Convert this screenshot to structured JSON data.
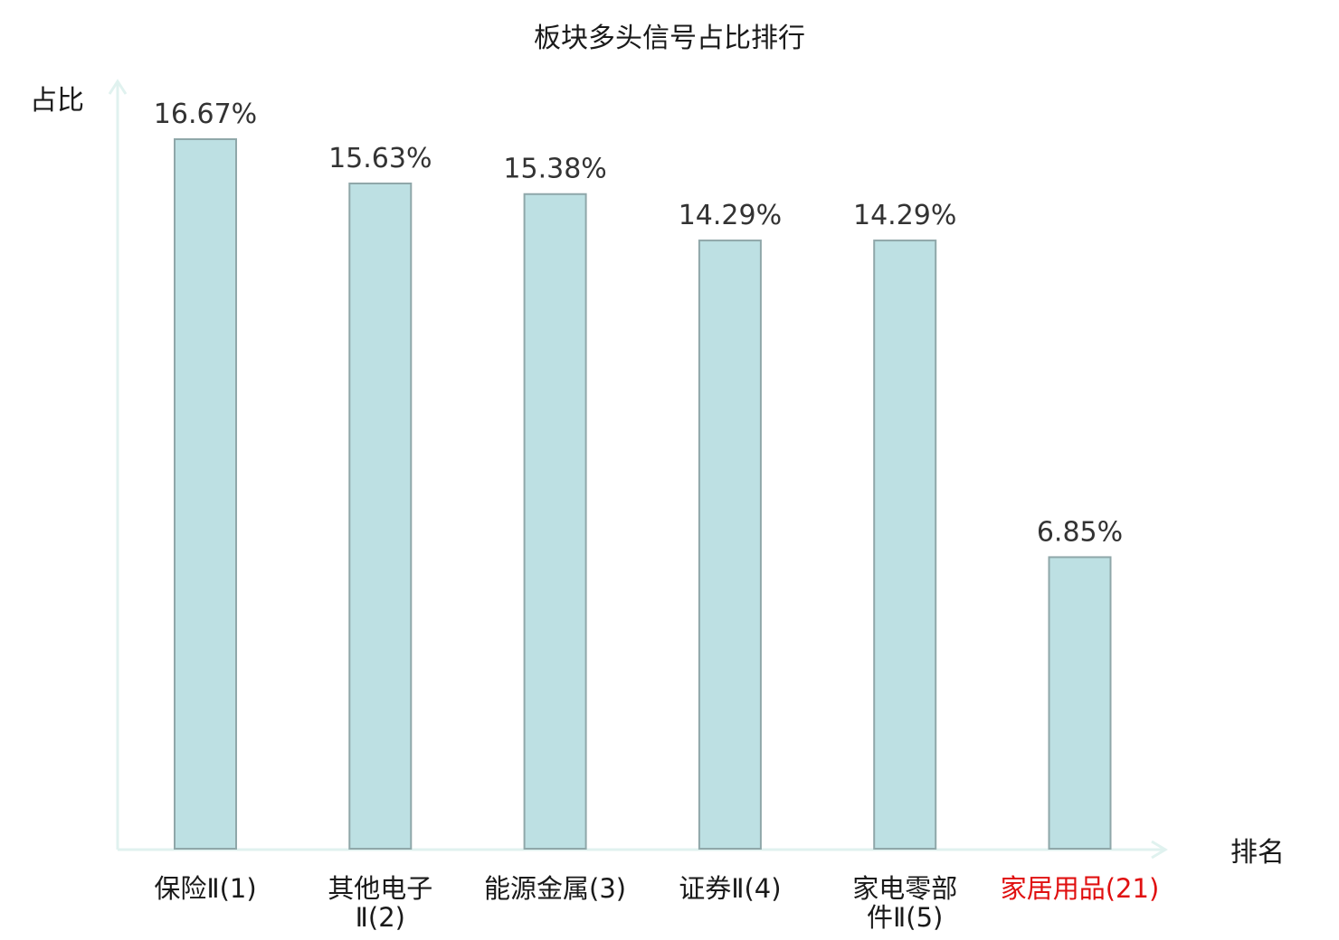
{
  "chart_data": {
    "type": "bar",
    "title": "板块多头信号占比排行",
    "xlabel": "排名",
    "ylabel": "占比",
    "categories": [
      [
        "保险Ⅱ(1)"
      ],
      [
        "其他电子",
        "Ⅱ(2)"
      ],
      [
        "能源金属(3)"
      ],
      [
        "证券Ⅱ(4)"
      ],
      [
        "家电零部",
        "件Ⅱ(5)"
      ],
      [
        "家居用品(21)"
      ]
    ],
    "values": [
      16.67,
      15.63,
      15.38,
      14.29,
      14.29,
      6.85
    ],
    "value_labels": [
      "16.67%",
      "15.63%",
      "15.38%",
      "14.29%",
      "14.29%",
      "6.85%"
    ],
    "highlight_index": 5,
    "ylim": [
      0,
      18
    ],
    "grid": false,
    "colors": {
      "bar_fill": "#bde0e3",
      "bar_stroke": "#8fa7a9",
      "axis": "#e0f2ef",
      "highlight_label": "#e01010",
      "label": "#1a1a1a",
      "value_label": "#333333"
    }
  }
}
